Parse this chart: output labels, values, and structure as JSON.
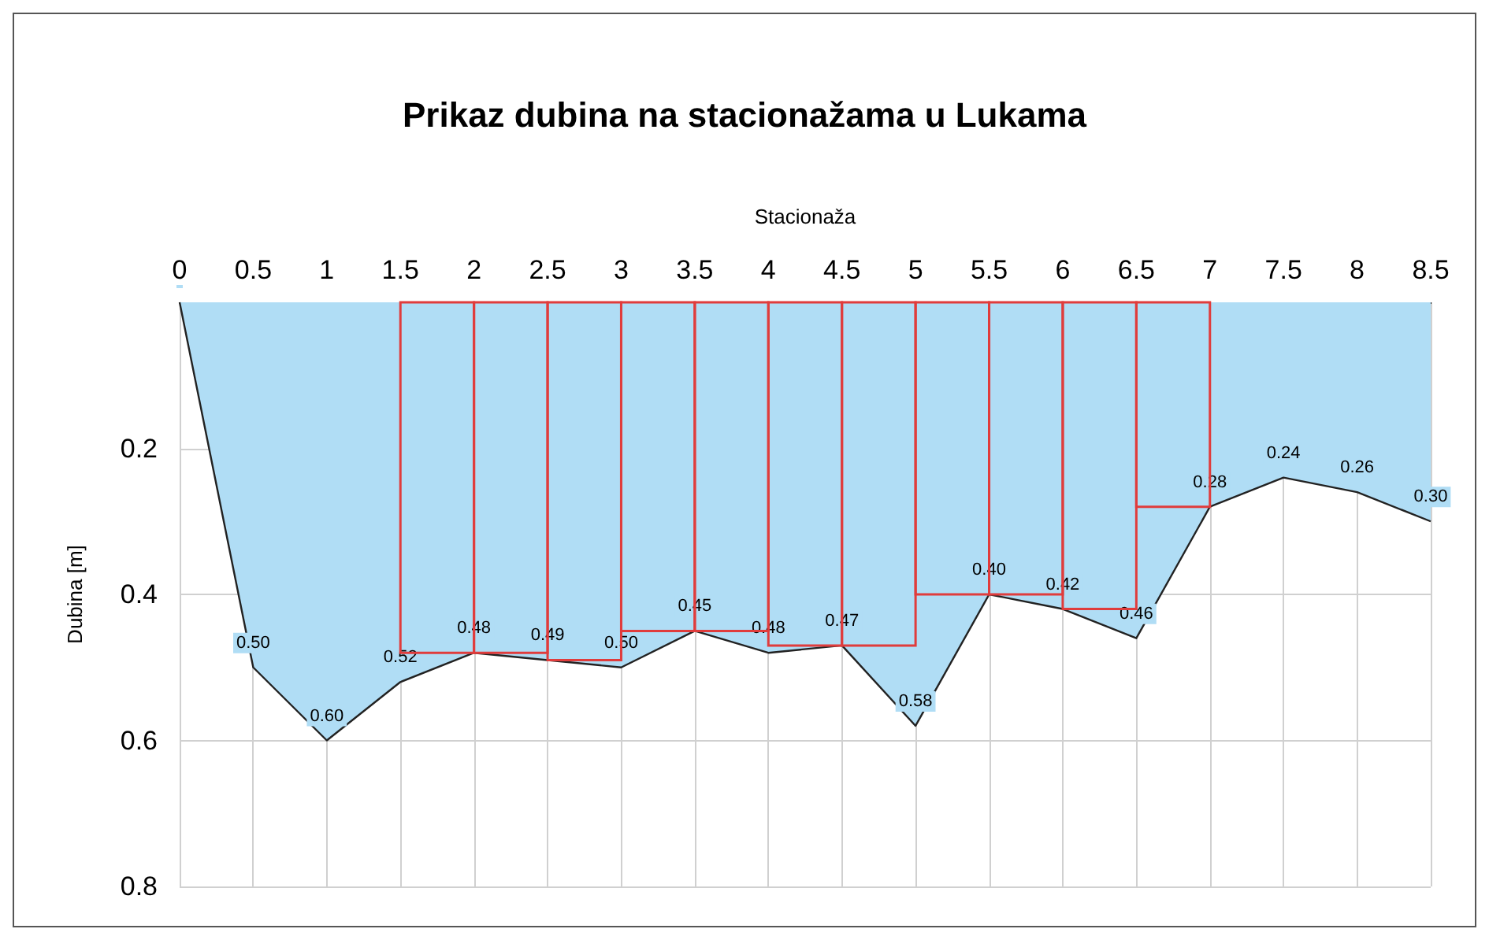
{
  "chart_data": {
    "type": "area",
    "title": "Prikaz dubina na stacionažama u Lukama",
    "xlabel": "Stacionaža",
    "ylabel": "Dubina [m]",
    "x": [
      0,
      0.5,
      1,
      1.5,
      2,
      2.5,
      3,
      3.5,
      4,
      4.5,
      5,
      5.5,
      6,
      6.5,
      7,
      7.5,
      8,
      8.5
    ],
    "series": [
      {
        "color": "#b0ddf5",
        "values": [
          0,
          0.5,
          0.6,
          0.52,
          0.48,
          0.49,
          0.5,
          0.45,
          0.48,
          0.47,
          0.58,
          0.4,
          0.42,
          0.46,
          0.28,
          0.24,
          0.26,
          0.3
        ],
        "value_labels": [
          null,
          "0.50",
          "0.60",
          "0.52",
          "0.48",
          "0.49",
          "0.50",
          "0.45",
          "0.48",
          "0.47",
          "0.58",
          "0.40",
          "0.42",
          "0.46",
          "0.28",
          "0.24",
          "0.26",
          "0.30"
        ]
      },
      {
        "type": "bar",
        "color": "#e03c3c",
        "x": [
          1.75,
          2.25,
          2.75,
          3.25,
          3.75,
          4.25,
          4.75,
          5.25,
          5.75,
          6.25,
          6.75
        ],
        "values": [
          0.48,
          0.48,
          0.49,
          0.45,
          0.45,
          0.47,
          0.47,
          0.4,
          0.4,
          0.42,
          0.28
        ]
      }
    ],
    "xlim": [
      0,
      8.5
    ],
    "xticks": [
      0,
      0.5,
      1,
      1.5,
      2,
      2.5,
      3,
      3.5,
      4,
      4.5,
      5,
      5.5,
      6,
      6.5,
      7,
      7.5,
      8,
      8.5
    ],
    "ylim": [
      0.8,
      0
    ],
    "yticks": [
      0.2,
      0.4,
      0.6,
      0.8
    ],
    "grid": true
  }
}
